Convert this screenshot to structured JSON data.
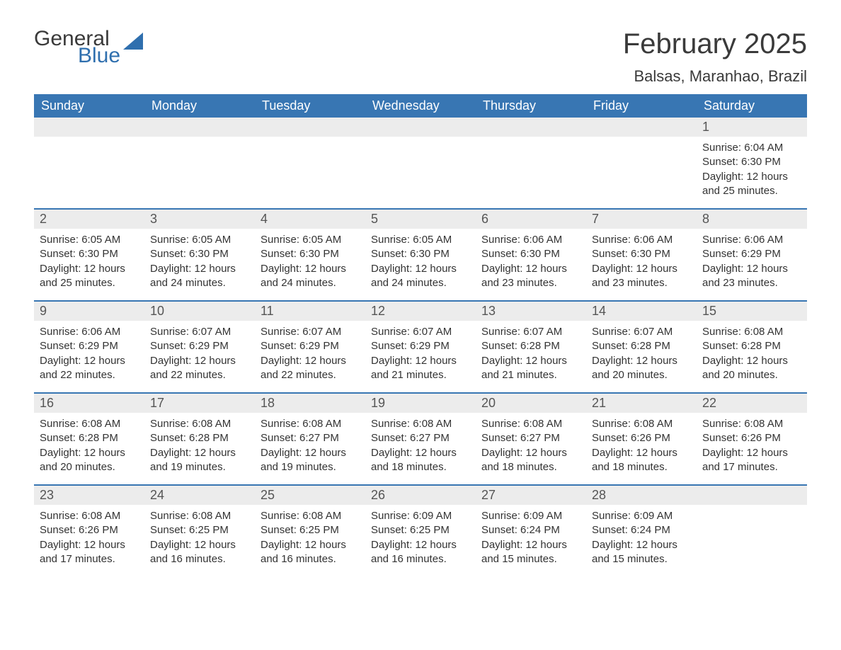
{
  "logo": {
    "general": "General",
    "blue": "Blue",
    "sail_color": "#2f6fae"
  },
  "title": "February 2025",
  "location": "Balsas, Maranhao, Brazil",
  "colors": {
    "header_bg": "#3876b3",
    "header_text": "#ffffff",
    "daynum_bg": "#ececec",
    "daynum_text": "#555555",
    "body_text": "#333333",
    "rule": "#3876b3",
    "background": "#ffffff",
    "logo_general": "#3a3a3a",
    "logo_blue": "#2f6fae"
  },
  "typography": {
    "title_fontsize": 40,
    "location_fontsize": 22,
    "weekday_fontsize": 18,
    "daynum_fontsize": 18,
    "body_fontsize": 15,
    "font_family": "Arial"
  },
  "weekdays": [
    "Sunday",
    "Monday",
    "Tuesday",
    "Wednesday",
    "Thursday",
    "Friday",
    "Saturday"
  ],
  "weeks": [
    [
      null,
      null,
      null,
      null,
      null,
      null,
      {
        "n": "1",
        "sunrise": "Sunrise: 6:04 AM",
        "sunset": "Sunset: 6:30 PM",
        "day1": "Daylight: 12 hours",
        "day2": "and 25 minutes."
      }
    ],
    [
      {
        "n": "2",
        "sunrise": "Sunrise: 6:05 AM",
        "sunset": "Sunset: 6:30 PM",
        "day1": "Daylight: 12 hours",
        "day2": "and 25 minutes."
      },
      {
        "n": "3",
        "sunrise": "Sunrise: 6:05 AM",
        "sunset": "Sunset: 6:30 PM",
        "day1": "Daylight: 12 hours",
        "day2": "and 24 minutes."
      },
      {
        "n": "4",
        "sunrise": "Sunrise: 6:05 AM",
        "sunset": "Sunset: 6:30 PM",
        "day1": "Daylight: 12 hours",
        "day2": "and 24 minutes."
      },
      {
        "n": "5",
        "sunrise": "Sunrise: 6:05 AM",
        "sunset": "Sunset: 6:30 PM",
        "day1": "Daylight: 12 hours",
        "day2": "and 24 minutes."
      },
      {
        "n": "6",
        "sunrise": "Sunrise: 6:06 AM",
        "sunset": "Sunset: 6:30 PM",
        "day1": "Daylight: 12 hours",
        "day2": "and 23 minutes."
      },
      {
        "n": "7",
        "sunrise": "Sunrise: 6:06 AM",
        "sunset": "Sunset: 6:30 PM",
        "day1": "Daylight: 12 hours",
        "day2": "and 23 minutes."
      },
      {
        "n": "8",
        "sunrise": "Sunrise: 6:06 AM",
        "sunset": "Sunset: 6:29 PM",
        "day1": "Daylight: 12 hours",
        "day2": "and 23 minutes."
      }
    ],
    [
      {
        "n": "9",
        "sunrise": "Sunrise: 6:06 AM",
        "sunset": "Sunset: 6:29 PM",
        "day1": "Daylight: 12 hours",
        "day2": "and 22 minutes."
      },
      {
        "n": "10",
        "sunrise": "Sunrise: 6:07 AM",
        "sunset": "Sunset: 6:29 PM",
        "day1": "Daylight: 12 hours",
        "day2": "and 22 minutes."
      },
      {
        "n": "11",
        "sunrise": "Sunrise: 6:07 AM",
        "sunset": "Sunset: 6:29 PM",
        "day1": "Daylight: 12 hours",
        "day2": "and 22 minutes."
      },
      {
        "n": "12",
        "sunrise": "Sunrise: 6:07 AM",
        "sunset": "Sunset: 6:29 PM",
        "day1": "Daylight: 12 hours",
        "day2": "and 21 minutes."
      },
      {
        "n": "13",
        "sunrise": "Sunrise: 6:07 AM",
        "sunset": "Sunset: 6:28 PM",
        "day1": "Daylight: 12 hours",
        "day2": "and 21 minutes."
      },
      {
        "n": "14",
        "sunrise": "Sunrise: 6:07 AM",
        "sunset": "Sunset: 6:28 PM",
        "day1": "Daylight: 12 hours",
        "day2": "and 20 minutes."
      },
      {
        "n": "15",
        "sunrise": "Sunrise: 6:08 AM",
        "sunset": "Sunset: 6:28 PM",
        "day1": "Daylight: 12 hours",
        "day2": "and 20 minutes."
      }
    ],
    [
      {
        "n": "16",
        "sunrise": "Sunrise: 6:08 AM",
        "sunset": "Sunset: 6:28 PM",
        "day1": "Daylight: 12 hours",
        "day2": "and 20 minutes."
      },
      {
        "n": "17",
        "sunrise": "Sunrise: 6:08 AM",
        "sunset": "Sunset: 6:28 PM",
        "day1": "Daylight: 12 hours",
        "day2": "and 19 minutes."
      },
      {
        "n": "18",
        "sunrise": "Sunrise: 6:08 AM",
        "sunset": "Sunset: 6:27 PM",
        "day1": "Daylight: 12 hours",
        "day2": "and 19 minutes."
      },
      {
        "n": "19",
        "sunrise": "Sunrise: 6:08 AM",
        "sunset": "Sunset: 6:27 PM",
        "day1": "Daylight: 12 hours",
        "day2": "and 18 minutes."
      },
      {
        "n": "20",
        "sunrise": "Sunrise: 6:08 AM",
        "sunset": "Sunset: 6:27 PM",
        "day1": "Daylight: 12 hours",
        "day2": "and 18 minutes."
      },
      {
        "n": "21",
        "sunrise": "Sunrise: 6:08 AM",
        "sunset": "Sunset: 6:26 PM",
        "day1": "Daylight: 12 hours",
        "day2": "and 18 minutes."
      },
      {
        "n": "22",
        "sunrise": "Sunrise: 6:08 AM",
        "sunset": "Sunset: 6:26 PM",
        "day1": "Daylight: 12 hours",
        "day2": "and 17 minutes."
      }
    ],
    [
      {
        "n": "23",
        "sunrise": "Sunrise: 6:08 AM",
        "sunset": "Sunset: 6:26 PM",
        "day1": "Daylight: 12 hours",
        "day2": "and 17 minutes."
      },
      {
        "n": "24",
        "sunrise": "Sunrise: 6:08 AM",
        "sunset": "Sunset: 6:25 PM",
        "day1": "Daylight: 12 hours",
        "day2": "and 16 minutes."
      },
      {
        "n": "25",
        "sunrise": "Sunrise: 6:08 AM",
        "sunset": "Sunset: 6:25 PM",
        "day1": "Daylight: 12 hours",
        "day2": "and 16 minutes."
      },
      {
        "n": "26",
        "sunrise": "Sunrise: 6:09 AM",
        "sunset": "Sunset: 6:25 PM",
        "day1": "Daylight: 12 hours",
        "day2": "and 16 minutes."
      },
      {
        "n": "27",
        "sunrise": "Sunrise: 6:09 AM",
        "sunset": "Sunset: 6:24 PM",
        "day1": "Daylight: 12 hours",
        "day2": "and 15 minutes."
      },
      {
        "n": "28",
        "sunrise": "Sunrise: 6:09 AM",
        "sunset": "Sunset: 6:24 PM",
        "day1": "Daylight: 12 hours",
        "day2": "and 15 minutes."
      },
      null
    ]
  ]
}
